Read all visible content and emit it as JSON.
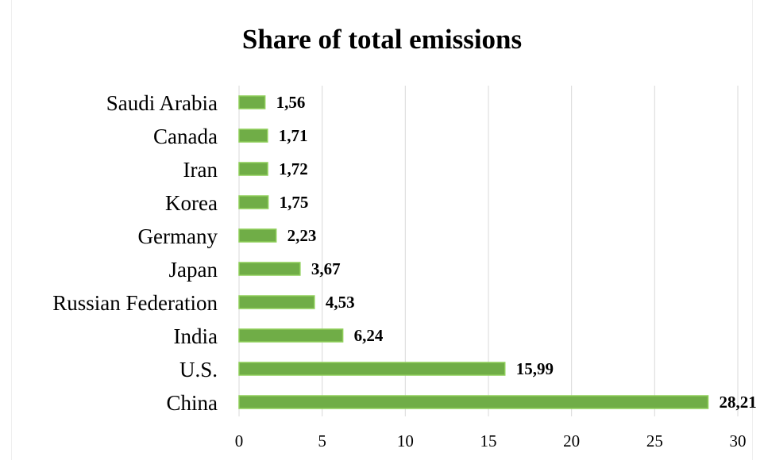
{
  "chart_data": {
    "type": "bar",
    "orientation": "horizontal",
    "title": "Share of total emissions",
    "xlabel": "",
    "ylabel": "",
    "categories": [
      "Saudi Arabia",
      "Canada",
      "Iran",
      "Korea",
      "Germany",
      "Japan",
      "Russian Federation",
      "India",
      "U.S.",
      "China"
    ],
    "values": [
      1.56,
      1.71,
      1.72,
      1.75,
      2.23,
      3.67,
      4.53,
      6.24,
      15.99,
      28.21
    ],
    "data_labels": [
      "1,56",
      "1,71",
      "1,72",
      "1,75",
      "2,23",
      "3,67",
      "4,53",
      "6,24",
      "15,99",
      "28,21"
    ],
    "xlim": [
      0,
      30
    ],
    "x_ticks": [
      0,
      5,
      10,
      15,
      20,
      25,
      30
    ],
    "grid": "vertical",
    "legend": "none",
    "colors": {
      "bar_fill": "#70ad47",
      "bar_edge": "#8fcf5a",
      "grid": "#d9d9d9"
    }
  }
}
